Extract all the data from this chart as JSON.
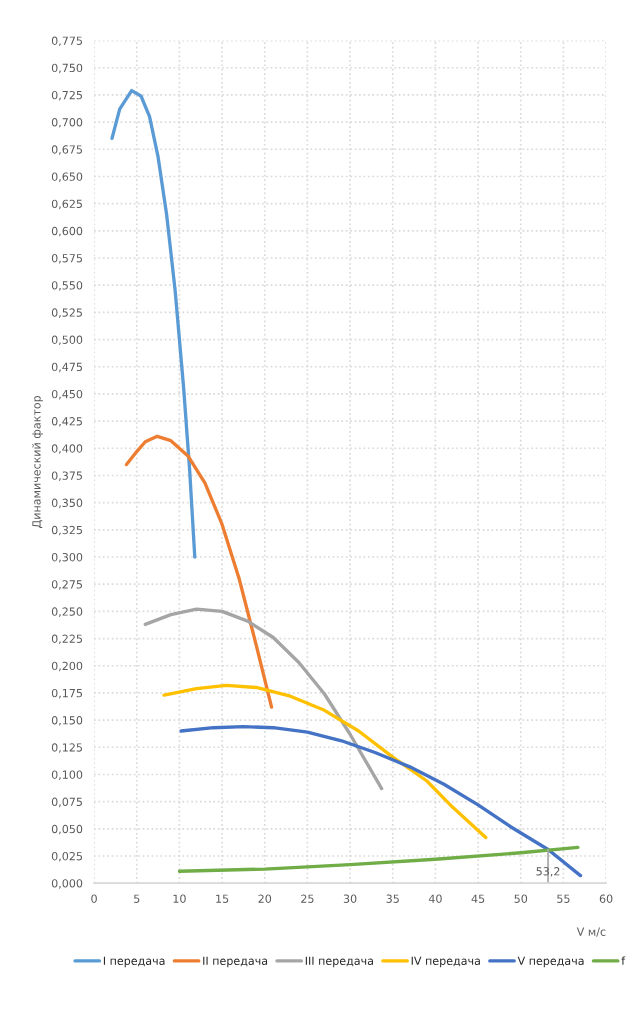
{
  "chart_data": {
    "type": "line",
    "xlabel": "V м/с",
    "ylabel": "Динамический фактор",
    "xlim": [
      0,
      60
    ],
    "xticks": [
      0,
      5,
      10,
      15,
      20,
      25,
      30,
      35,
      40,
      45,
      50,
      55,
      60
    ],
    "ylim": [
      0,
      0.775
    ],
    "yticks": [
      {
        "value": 0,
        "label": "0,000"
      },
      {
        "value": 0.025,
        "label": "0,025"
      },
      {
        "value": 0.05,
        "label": "0,050"
      },
      {
        "value": 0.075,
        "label": "0,075"
      },
      {
        "value": 0.1,
        "label": "0,100"
      },
      {
        "value": 0.125,
        "label": "0,125"
      },
      {
        "value": 0.15,
        "label": "0,150"
      },
      {
        "value": 0.175,
        "label": "0,175"
      },
      {
        "value": 0.2,
        "label": "0,200"
      },
      {
        "value": 0.225,
        "label": "0,225"
      },
      {
        "value": 0.25,
        "label": "0,250"
      },
      {
        "value": 0.275,
        "label": "0,275"
      },
      {
        "value": 0.3,
        "label": "0,300"
      },
      {
        "value": 0.325,
        "label": "0,325"
      },
      {
        "value": 0.35,
        "label": "0,350"
      },
      {
        "value": 0.375,
        "label": "0,375"
      },
      {
        "value": 0.4,
        "label": "0,400"
      },
      {
        "value": 0.425,
        "label": "0,425"
      },
      {
        "value": 0.45,
        "label": "0,450"
      },
      {
        "value": 0.475,
        "label": "0,475"
      },
      {
        "value": 0.5,
        "label": "0,500"
      },
      {
        "value": 0.525,
        "label": "0,525"
      },
      {
        "value": 0.55,
        "label": "0,550"
      },
      {
        "value": 0.575,
        "label": "0,575"
      },
      {
        "value": 0.6,
        "label": "0,600"
      },
      {
        "value": 0.625,
        "label": "0,625"
      },
      {
        "value": 0.65,
        "label": "0,650"
      },
      {
        "value": 0.675,
        "label": "0,675"
      },
      {
        "value": 0.7,
        "label": "0,700"
      },
      {
        "value": 0.725,
        "label": "0,725"
      },
      {
        "value": 0.75,
        "label": "0,750"
      },
      {
        "value": 0.775,
        "label": "0,775"
      }
    ],
    "grid": true,
    "legend": "bottom",
    "marker": "none",
    "line_style": "solid",
    "annotations": [
      {
        "text": "53,2",
        "x": 53.2,
        "y": 0.031
      }
    ],
    "series": [
      {
        "name": "I передача",
        "color": "#5b9bd5",
        "x": [
          2.1,
          3,
          4.4,
          5.5,
          6.5,
          7.5,
          8.5,
          9.5,
          10.5,
          11.2,
          11.8
        ],
        "values": [
          0.685,
          0.712,
          0.729,
          0.724,
          0.705,
          0.668,
          0.615,
          0.545,
          0.455,
          0.38,
          0.3
        ]
      },
      {
        "name": "II передача",
        "color": "#ed7d31",
        "x": [
          3.8,
          5,
          6,
          7.4,
          9,
          11,
          13,
          15,
          17,
          19,
          20.8
        ],
        "values": [
          0.385,
          0.397,
          0.406,
          0.411,
          0.407,
          0.393,
          0.368,
          0.33,
          0.28,
          0.219,
          0.162
        ]
      },
      {
        "name": "III передача",
        "color": "#a5a5a5",
        "x": [
          6,
          9,
          12,
          15,
          18,
          21,
          24,
          27,
          30,
          33.7
        ],
        "values": [
          0.238,
          0.247,
          0.252,
          0.25,
          0.241,
          0.226,
          0.203,
          0.174,
          0.137,
          0.087
        ]
      },
      {
        "name": "IV передача",
        "color": "#ffc000",
        "x": [
          8.2,
          12,
          15.5,
          19,
          23,
          27,
          31,
          35,
          39,
          42,
          45.9
        ],
        "values": [
          0.173,
          0.179,
          0.182,
          0.18,
          0.172,
          0.159,
          0.14,
          0.116,
          0.094,
          0.07,
          0.042
        ]
      },
      {
        "name": "V передача",
        "color": "#4472c4",
        "x": [
          10.2,
          14,
          17.5,
          21,
          25,
          29,
          33,
          37,
          41,
          45,
          49,
          53.2,
          57
        ],
        "values": [
          0.14,
          0.143,
          0.144,
          0.143,
          0.139,
          0.131,
          0.12,
          0.107,
          0.091,
          0.072,
          0.051,
          0.031,
          0.007
        ]
      },
      {
        "name": "f",
        "color": "#70ad47",
        "x": [
          10,
          20,
          30,
          40,
          50,
          56.7
        ],
        "values": [
          0.011,
          0.013,
          0.017,
          0.022,
          0.028,
          0.033
        ]
      }
    ]
  }
}
